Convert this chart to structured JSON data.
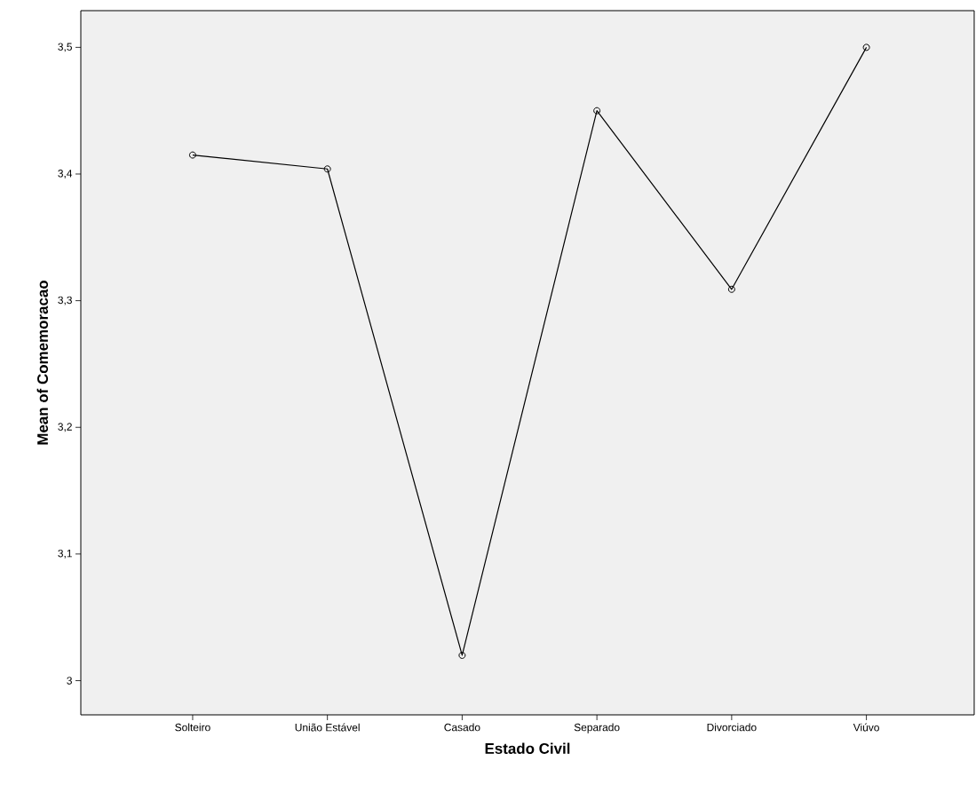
{
  "chart_data": {
    "type": "line",
    "xlabel": "Estado Civil",
    "ylabel": "Mean of Comemoracao",
    "categories": [
      "Solteiro",
      "União Estável",
      "Casado",
      "Separado",
      "Divorciado",
      "Viúvo"
    ],
    "values": [
      3.415,
      3.404,
      3.02,
      3.45,
      3.309,
      3.5
    ],
    "color": "#000000",
    "marker": "circle",
    "line_style": "solid",
    "ylim": [
      2.973,
      3.529
    ],
    "yticks": [
      3,
      {
        "value": 3.1,
        "label": "3,1"
      },
      {
        "value": 3.2,
        "label": "3,2"
      },
      {
        "value": 3.3,
        "label": "3,3"
      },
      {
        "value": 3.4,
        "label": "3,4"
      },
      {
        "value": 3.5,
        "label": "3,5"
      }
    ]
  }
}
